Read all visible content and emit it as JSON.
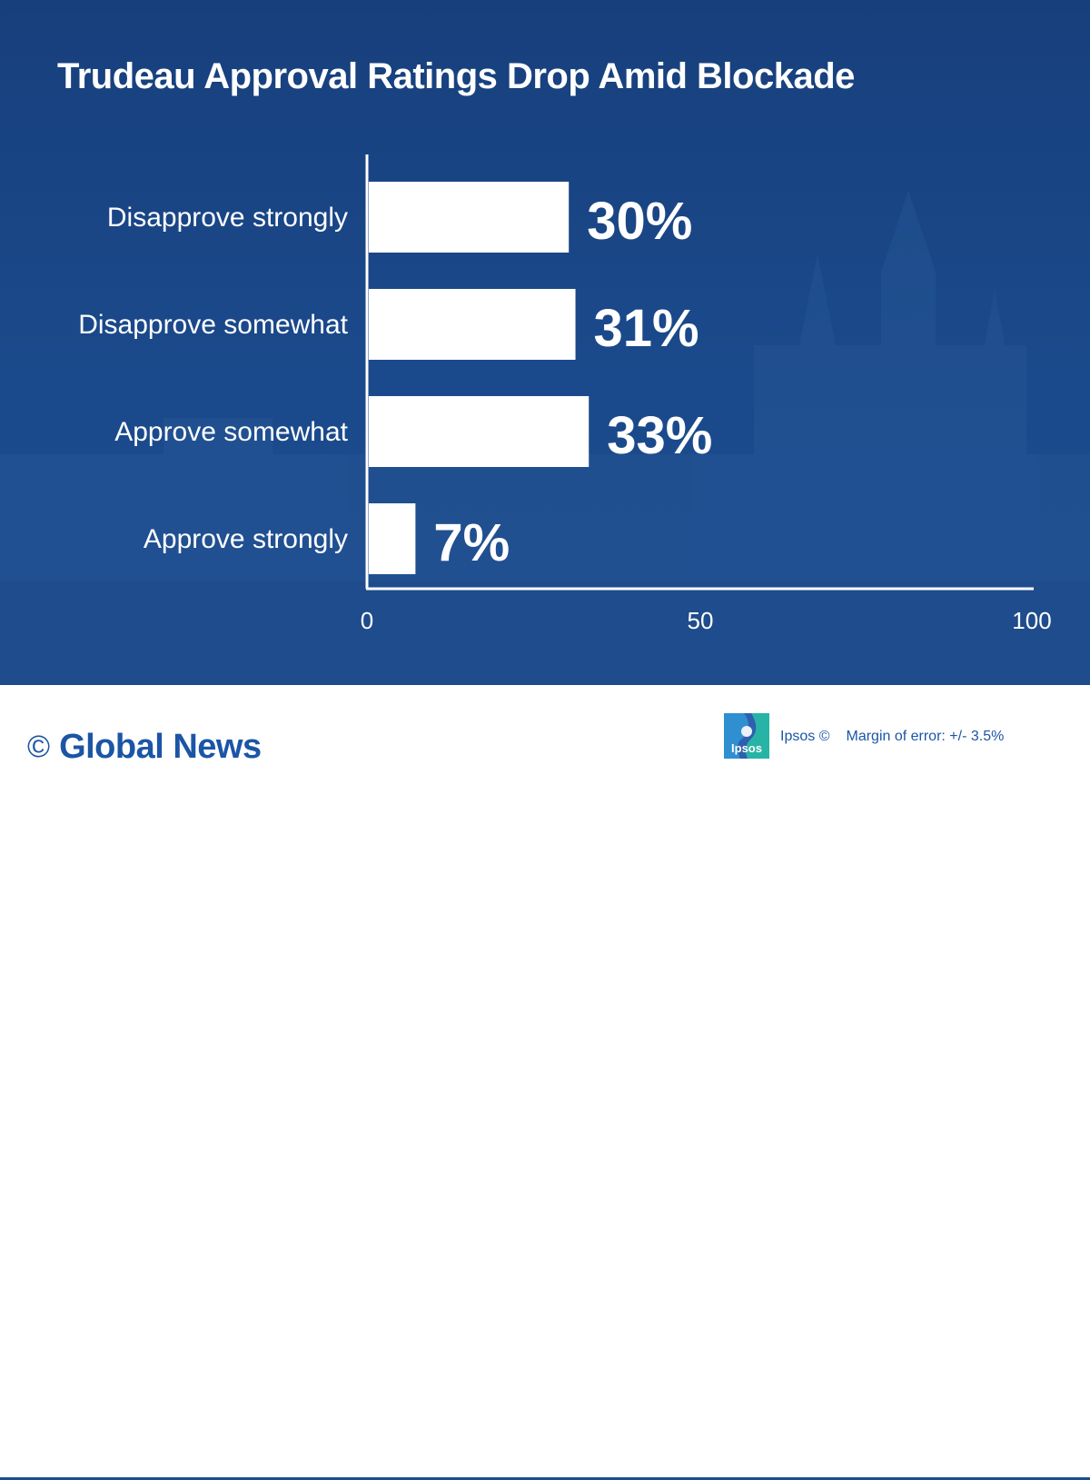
{
  "colors": {
    "panel": "#1b4a8c",
    "bar": "#ffffff",
    "brand": "#1c55a6"
  },
  "chart_data": {
    "type": "bar",
    "orientation": "horizontal",
    "title": "Trudeau Approval Ratings Drop Amid Blockade",
    "categories": [
      "Disapprove strongly",
      "Disapprove somewhat",
      "Approve somewhat",
      "Approve strongly"
    ],
    "values": [
      30,
      31,
      33,
      7
    ],
    "data_labels": [
      "30%",
      "31%",
      "33%",
      "7%"
    ],
    "xlim": [
      0,
      100
    ],
    "xticks": [
      "0",
      "50",
      "100"
    ],
    "grid": false,
    "legend": "none"
  },
  "footer": {
    "copyright_symbol": "©",
    "brand": "Global News",
    "logo_text": "Ipsos",
    "source": "Ipsos ©",
    "margin_of_error": "Margin of error: +/- 3.5%"
  }
}
